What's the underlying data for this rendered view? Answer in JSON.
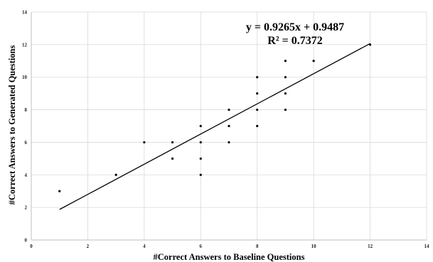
{
  "chart_data": {
    "type": "scatter",
    "xlabel": "#Correct Answers to Baseline Questions",
    "ylabel": "#Correct Answers to Generated Questions",
    "xlim": [
      0,
      14
    ],
    "ylim": [
      0,
      14
    ],
    "xticks": [
      0,
      2,
      4,
      6,
      8,
      10,
      12,
      14
    ],
    "yticks": [
      0,
      2,
      4,
      6,
      8,
      10,
      12,
      14
    ],
    "grid": true,
    "series": [
      {
        "points": [
          {
            "x": 1,
            "y": 3
          },
          {
            "x": 3,
            "y": 4
          },
          {
            "x": 4,
            "y": 6
          },
          {
            "x": 5,
            "y": 6
          },
          {
            "x": 5,
            "y": 5
          },
          {
            "x": 6,
            "y": 7
          },
          {
            "x": 6,
            "y": 6
          },
          {
            "x": 6,
            "y": 5
          },
          {
            "x": 6,
            "y": 4
          },
          {
            "x": 7,
            "y": 8
          },
          {
            "x": 7,
            "y": 7
          },
          {
            "x": 7,
            "y": 6
          },
          {
            "x": 8,
            "y": 10
          },
          {
            "x": 8,
            "y": 9
          },
          {
            "x": 8,
            "y": 8
          },
          {
            "x": 8,
            "y": 7
          },
          {
            "x": 9,
            "y": 11
          },
          {
            "x": 9,
            "y": 10
          },
          {
            "x": 9,
            "y": 9
          },
          {
            "x": 9,
            "y": 8
          },
          {
            "x": 10,
            "y": 11
          },
          {
            "x": 12,
            "y": 12
          }
        ]
      }
    ],
    "trendline": {
      "slope": 0.9265,
      "intercept": 0.9487,
      "x_range": [
        1,
        12
      ],
      "equation": "y = 0.9265x + 0.9487",
      "r_squared": "R² = 0.7372"
    },
    "colors": {
      "points": "#000000",
      "trendline": "#000000",
      "grid": "#d9d9d9"
    }
  }
}
